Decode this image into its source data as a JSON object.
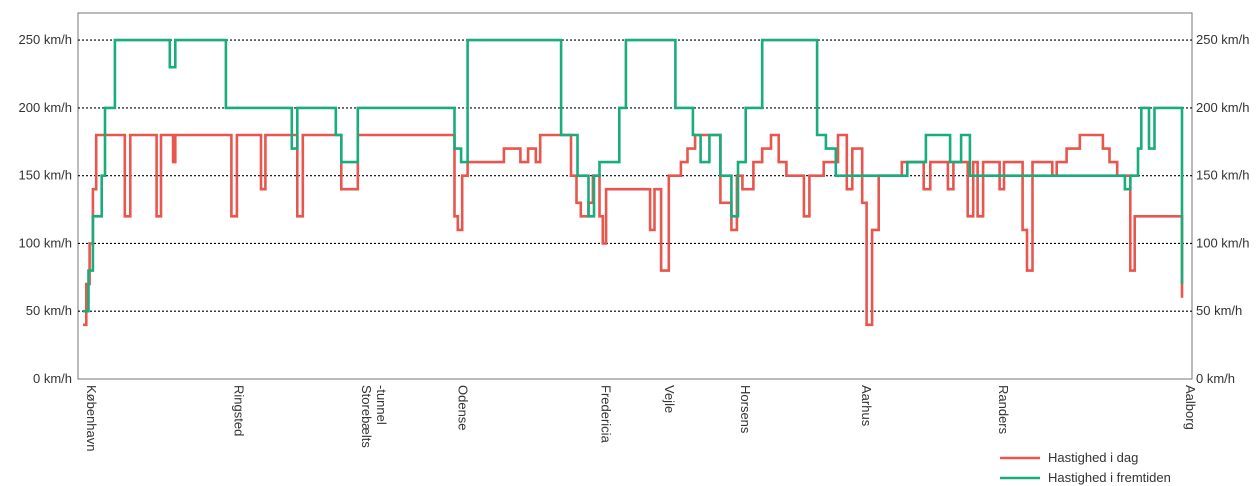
{
  "chart_data": {
    "type": "line",
    "step": true,
    "y_unit_suffix": " km/h",
    "y_ticks": [
      0,
      50,
      100,
      150,
      200,
      250
    ],
    "ylim": [
      0,
      270
    ],
    "xlim": [
      0,
      100
    ],
    "grid": {
      "y": true,
      "style": "dotted",
      "color": "#000000"
    },
    "legend_position": "bottom-right",
    "stations": [
      {
        "name": "København",
        "x": 0
      },
      {
        "name": "Ringsted",
        "x": 13.4
      },
      {
        "name": "Storebælts\n-tunnel",
        "x": 25.0
      },
      {
        "name": "Odense",
        "x": 33.8
      },
      {
        "name": "Fredericia",
        "x": 46.8
      },
      {
        "name": "Vejle",
        "x": 52.6
      },
      {
        "name": "Horsens",
        "x": 59.5
      },
      {
        "name": "Aarhus",
        "x": 70.5
      },
      {
        "name": "Randers",
        "x": 83.0
      },
      {
        "name": "Aalborg",
        "x": 100
      }
    ],
    "series": [
      {
        "name": "Hastighed i dag",
        "color": "#e8564e",
        "points": [
          [
            0,
            40
          ],
          [
            0.3,
            70
          ],
          [
            0.6,
            100
          ],
          [
            0.9,
            140
          ],
          [
            1.2,
            180
          ],
          [
            3.8,
            120
          ],
          [
            4.3,
            180
          ],
          [
            6.7,
            120
          ],
          [
            7.1,
            180
          ],
          [
            8.2,
            160
          ],
          [
            8.4,
            180
          ],
          [
            13.5,
            120
          ],
          [
            14.0,
            180
          ],
          [
            16.2,
            140
          ],
          [
            16.6,
            180
          ],
          [
            19.5,
            120
          ],
          [
            20.0,
            180
          ],
          [
            23.5,
            140
          ],
          [
            25.0,
            180
          ],
          [
            33.8,
            120
          ],
          [
            34.1,
            110
          ],
          [
            34.5,
            150
          ],
          [
            35.0,
            160
          ],
          [
            38.3,
            170
          ],
          [
            39.8,
            160
          ],
          [
            40.5,
            170
          ],
          [
            41.2,
            160
          ],
          [
            41.6,
            180
          ],
          [
            44.4,
            150
          ],
          [
            44.9,
            130
          ],
          [
            45.3,
            120
          ],
          [
            46.0,
            130
          ],
          [
            46.4,
            150
          ],
          [
            47.0,
            120
          ],
          [
            47.3,
            100
          ],
          [
            47.6,
            140
          ],
          [
            51.6,
            110
          ],
          [
            52.0,
            140
          ],
          [
            52.6,
            80
          ],
          [
            53.3,
            150
          ],
          [
            54.4,
            160
          ],
          [
            55.0,
            170
          ],
          [
            55.7,
            180
          ],
          [
            58.0,
            130
          ],
          [
            59.0,
            110
          ],
          [
            59.5,
            150
          ],
          [
            60.0,
            140
          ],
          [
            61.0,
            160
          ],
          [
            61.8,
            170
          ],
          [
            62.6,
            180
          ],
          [
            63.3,
            160
          ],
          [
            64.0,
            150
          ],
          [
            65.6,
            120
          ],
          [
            66.1,
            150
          ],
          [
            67.4,
            160
          ],
          [
            68.7,
            180
          ],
          [
            69.5,
            140
          ],
          [
            70.0,
            170
          ],
          [
            70.9,
            130
          ],
          [
            71.3,
            40
          ],
          [
            71.8,
            110
          ],
          [
            72.4,
            150
          ],
          [
            74.5,
            160
          ],
          [
            76.5,
            140
          ],
          [
            77.1,
            160
          ],
          [
            78.7,
            140
          ],
          [
            79.2,
            160
          ],
          [
            80.5,
            120
          ],
          [
            81.0,
            160
          ],
          [
            81.4,
            120
          ],
          [
            81.9,
            160
          ],
          [
            83.4,
            140
          ],
          [
            83.8,
            160
          ],
          [
            85.5,
            110
          ],
          [
            85.9,
            80
          ],
          [
            86.4,
            160
          ],
          [
            88.2,
            150
          ],
          [
            88.6,
            160
          ],
          [
            89.5,
            170
          ],
          [
            90.7,
            180
          ],
          [
            92.8,
            170
          ],
          [
            93.4,
            160
          ],
          [
            94.1,
            150
          ],
          [
            95.3,
            80
          ],
          [
            95.7,
            120
          ],
          [
            100,
            60
          ]
        ]
      },
      {
        "name": "Hastighed i fremtiden",
        "color": "#1aad7c",
        "points": [
          [
            0,
            50
          ],
          [
            0.5,
            80
          ],
          [
            0.9,
            120
          ],
          [
            1.7,
            150
          ],
          [
            2.0,
            200
          ],
          [
            2.9,
            250
          ],
          [
            7.9,
            230
          ],
          [
            8.4,
            250
          ],
          [
            13.0,
            200
          ],
          [
            19.0,
            170
          ],
          [
            19.5,
            200
          ],
          [
            23.0,
            180
          ],
          [
            23.5,
            160
          ],
          [
            25.0,
            200
          ],
          [
            33.8,
            170
          ],
          [
            34.4,
            160
          ],
          [
            35.0,
            250
          ],
          [
            43.5,
            180
          ],
          [
            45.0,
            150
          ],
          [
            46.0,
            120
          ],
          [
            46.5,
            150
          ],
          [
            47.0,
            160
          ],
          [
            48.8,
            200
          ],
          [
            49.4,
            250
          ],
          [
            53.9,
            200
          ],
          [
            55.5,
            180
          ],
          [
            56.2,
            160
          ],
          [
            57.0,
            180
          ],
          [
            58.0,
            150
          ],
          [
            59.0,
            120
          ],
          [
            59.6,
            160
          ],
          [
            60.3,
            200
          ],
          [
            61.8,
            250
          ],
          [
            66.8,
            180
          ],
          [
            67.6,
            170
          ],
          [
            68.5,
            150
          ],
          [
            75.0,
            160
          ],
          [
            76.7,
            180
          ],
          [
            78.9,
            160
          ],
          [
            79.9,
            180
          ],
          [
            80.7,
            150
          ],
          [
            94.8,
            140
          ],
          [
            95.3,
            150
          ],
          [
            96.0,
            170
          ],
          [
            96.3,
            200
          ],
          [
            97.0,
            170
          ],
          [
            97.5,
            200
          ],
          [
            100,
            70
          ]
        ]
      }
    ]
  }
}
